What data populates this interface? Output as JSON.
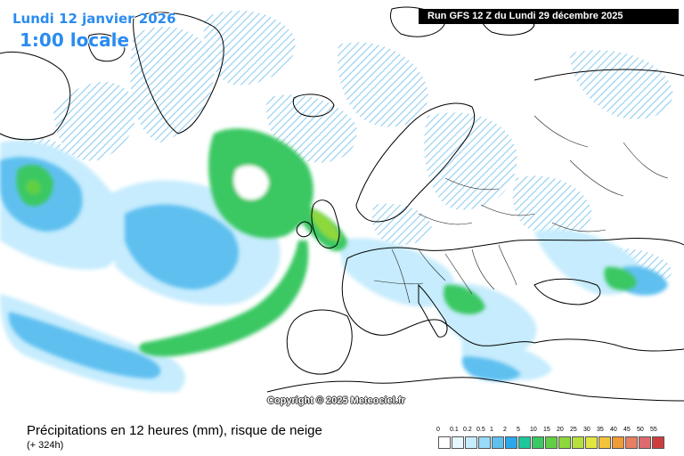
{
  "header": {
    "date": "Lundi 12 janvier 2026",
    "time": "1:00 locale"
  },
  "run": {
    "label": "Run GFS 12 Z du Lundi 29 décembre 2025"
  },
  "copyright": "Copyright © 2025 Meteociel.fr",
  "footer": {
    "title": "Précipitations en 12 heures (mm), risque de neige",
    "subtitle": "(+ 324h)"
  },
  "legend": {
    "items": [
      {
        "label": "0",
        "color": "#ffffff"
      },
      {
        "label": "0.1",
        "color": "#e8f7ff"
      },
      {
        "label": "0.2",
        "color": "#c6ecfd"
      },
      {
        "label": "0.5",
        "color": "#98dbf8"
      },
      {
        "label": "1",
        "color": "#5fc0f0"
      },
      {
        "label": "2",
        "color": "#2aa8ea"
      },
      {
        "label": "5",
        "color": "#1dc79c"
      },
      {
        "label": "10",
        "color": "#3bc864"
      },
      {
        "label": "15",
        "color": "#62cf42"
      },
      {
        "label": "20",
        "color": "#8ed83a"
      },
      {
        "label": "25",
        "color": "#b8e03c"
      },
      {
        "label": "30",
        "color": "#e3e640"
      },
      {
        "label": "35",
        "color": "#f3c33c"
      },
      {
        "label": "40",
        "color": "#f19a38"
      },
      {
        "label": "45",
        "color": "#e87e62"
      },
      {
        "label": "50",
        "color": "#de6a6e"
      },
      {
        "label": "55",
        "color": "#cf3e3e"
      }
    ]
  },
  "colors": {
    "header_text": "#2a8cf0",
    "coastline": "#000000",
    "snow_hatch": "#9fd4f2"
  }
}
